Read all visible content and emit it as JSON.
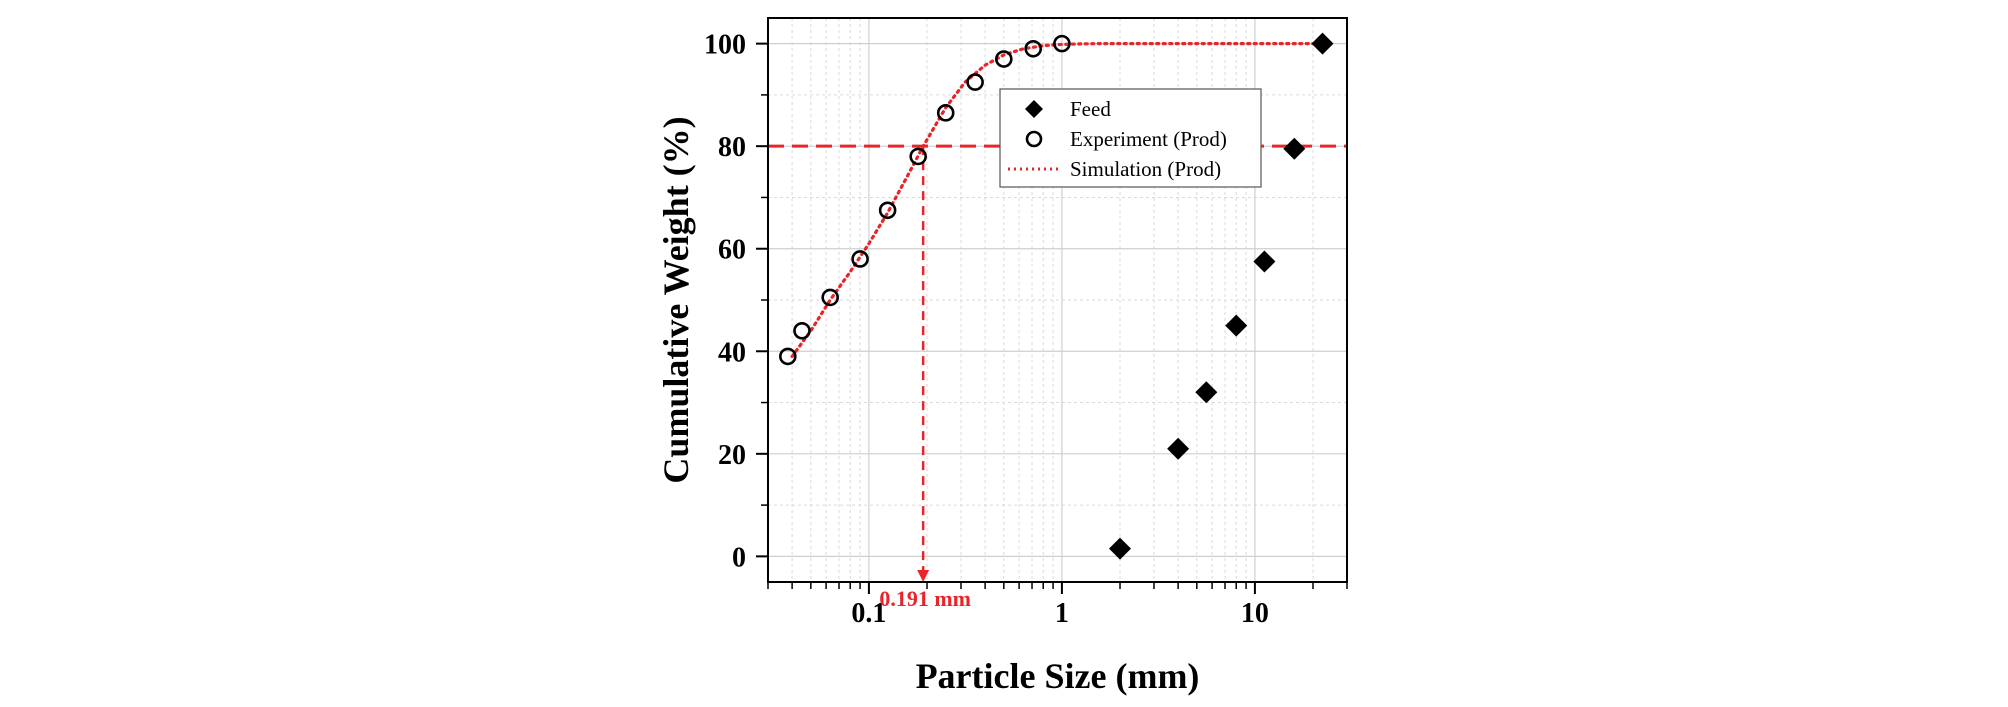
{
  "chart_data": {
    "type": "scatter",
    "title": "",
    "xlabel": "Particle Size (mm)",
    "ylabel": "Cumulative Weight (%)",
    "xscale": "log",
    "xlim": [
      0.03,
      30
    ],
    "ylim": [
      -5,
      105
    ],
    "grid": true,
    "x_ticks": [
      {
        "value": 0.1,
        "label": "0.1"
      },
      {
        "value": 1,
        "label": "1"
      },
      {
        "value": 10,
        "label": "10"
      }
    ],
    "y_ticks": [
      {
        "value": 0,
        "label": "0"
      },
      {
        "value": 20,
        "label": "20"
      },
      {
        "value": 40,
        "label": "40"
      },
      {
        "value": 60,
        "label": "60"
      },
      {
        "value": 80,
        "label": "80"
      },
      {
        "value": 100,
        "label": "100"
      }
    ],
    "legend_position": "upper-right",
    "series": [
      {
        "name": "Feed",
        "marker": "diamond",
        "color": "#000000",
        "x": [
          2.0,
          4.0,
          5.6,
          8.0,
          11.2,
          16.0,
          22.4
        ],
        "y": [
          1.5,
          21.0,
          32.0,
          45.0,
          57.5,
          79.5,
          100.0
        ]
      },
      {
        "name": "Experiment (Prod)",
        "marker": "open-circle",
        "color": "#000000",
        "x": [
          0.038,
          0.045,
          0.063,
          0.09,
          0.125,
          0.18,
          0.25,
          0.355,
          0.5,
          0.71,
          1.0
        ],
        "y": [
          39.0,
          44.0,
          50.5,
          58.0,
          67.5,
          78.0,
          86.5,
          92.5,
          97.0,
          99.0,
          100.0
        ]
      },
      {
        "name": "Simulation (Prod)",
        "marker": "dotted-line",
        "color": "#e8262a",
        "x": [
          0.04,
          0.05,
          0.063,
          0.08,
          0.1,
          0.125,
          0.16,
          0.191,
          0.25,
          0.315,
          0.4,
          0.5,
          0.63,
          0.8,
          1.0,
          1.25,
          1.6,
          2.0,
          5.0,
          10.0,
          22.4
        ],
        "y": [
          39.0,
          44.0,
          50.0,
          55.5,
          61.0,
          67.0,
          74.5,
          80.0,
          87.5,
          92.5,
          95.8,
          97.8,
          99.0,
          99.6,
          99.85,
          99.95,
          100.0,
          100.0,
          100.0,
          100.0,
          100.0
        ]
      }
    ],
    "annotations": [
      {
        "type": "hline",
        "y": 80,
        "style": "dashed",
        "color": "#e8262a"
      },
      {
        "type": "vline",
        "x": 0.191,
        "y_from": 80,
        "style": "dashed-arrow",
        "color": "#e8262a"
      },
      {
        "type": "text",
        "x": 0.191,
        "text": "0.191 mm",
        "color": "#e8262a"
      }
    ]
  }
}
